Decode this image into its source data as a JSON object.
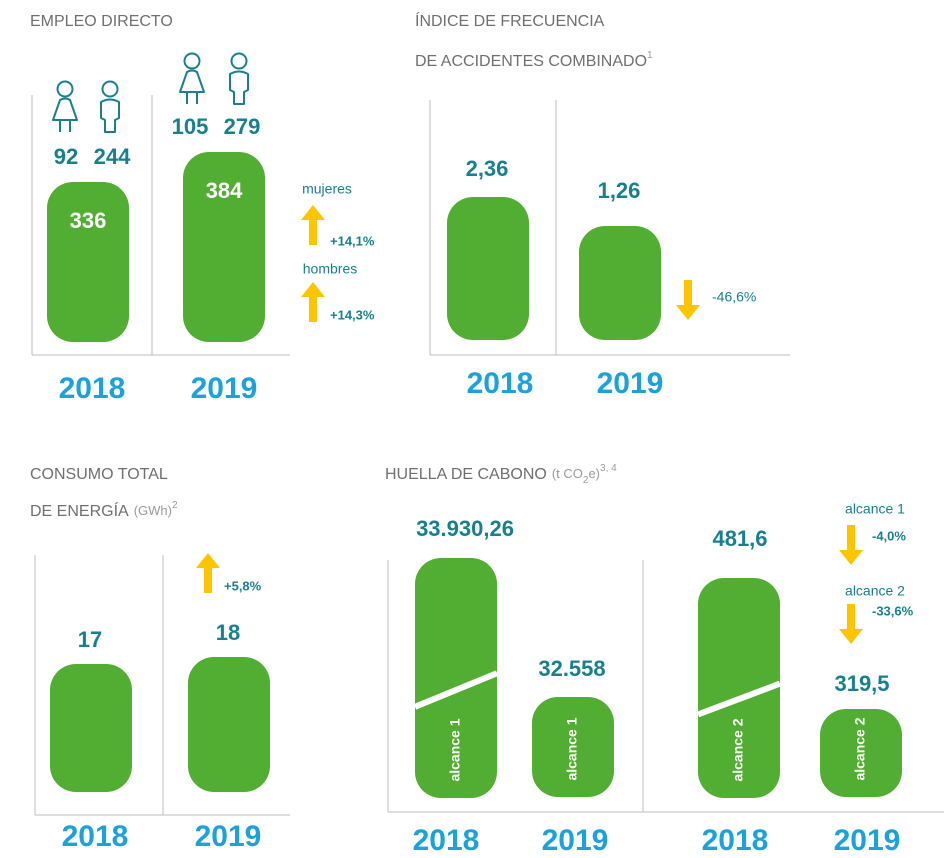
{
  "empleo": {
    "title": "EMPLEO DIRECTO",
    "years": [
      {
        "year": "2018",
        "total": "336",
        "mujeres": "92",
        "hombres": "244"
      },
      {
        "year": "2019",
        "total": "384",
        "mujeres": "105",
        "hombres": "279"
      }
    ],
    "changes": [
      {
        "label": "mujeres",
        "value": "+14,1%"
      },
      {
        "label": "hombres",
        "value": "+14,3%"
      }
    ]
  },
  "accidentes": {
    "title_lines": [
      "ÍNDICE DE FRECUENCIA",
      "DE ACCIDENTES COMBINADO"
    ],
    "note": "1",
    "years": [
      {
        "year": "2018",
        "value": "2,36"
      },
      {
        "year": "2019",
        "value": "1,26"
      }
    ],
    "change": "-46,6%"
  },
  "energia": {
    "title_lines": [
      "CONSUMO TOTAL",
      "DE ENERGÍA"
    ],
    "unit": "(GWh)",
    "note": "2",
    "years": [
      {
        "year": "2018",
        "value": "17"
      },
      {
        "year": "2019",
        "value": "18"
      }
    ],
    "change": "+5,8%"
  },
  "huella": {
    "title": "HUELLA DE CABONO",
    "unit_parts": [
      "(t CO",
      "2",
      "e)"
    ],
    "note": "3, 4",
    "groups": [
      {
        "scope": "alcance 1",
        "years": [
          {
            "year": "2018",
            "value": "33.930,26"
          },
          {
            "year": "2019",
            "value": "32.558"
          }
        ],
        "change": "-4,0%"
      },
      {
        "scope": "alcance 2",
        "years": [
          {
            "year": "2018",
            "value": "481,6"
          },
          {
            "year": "2019",
            "value": "319,5"
          }
        ],
        "change": "-33,6%"
      }
    ]
  }
}
